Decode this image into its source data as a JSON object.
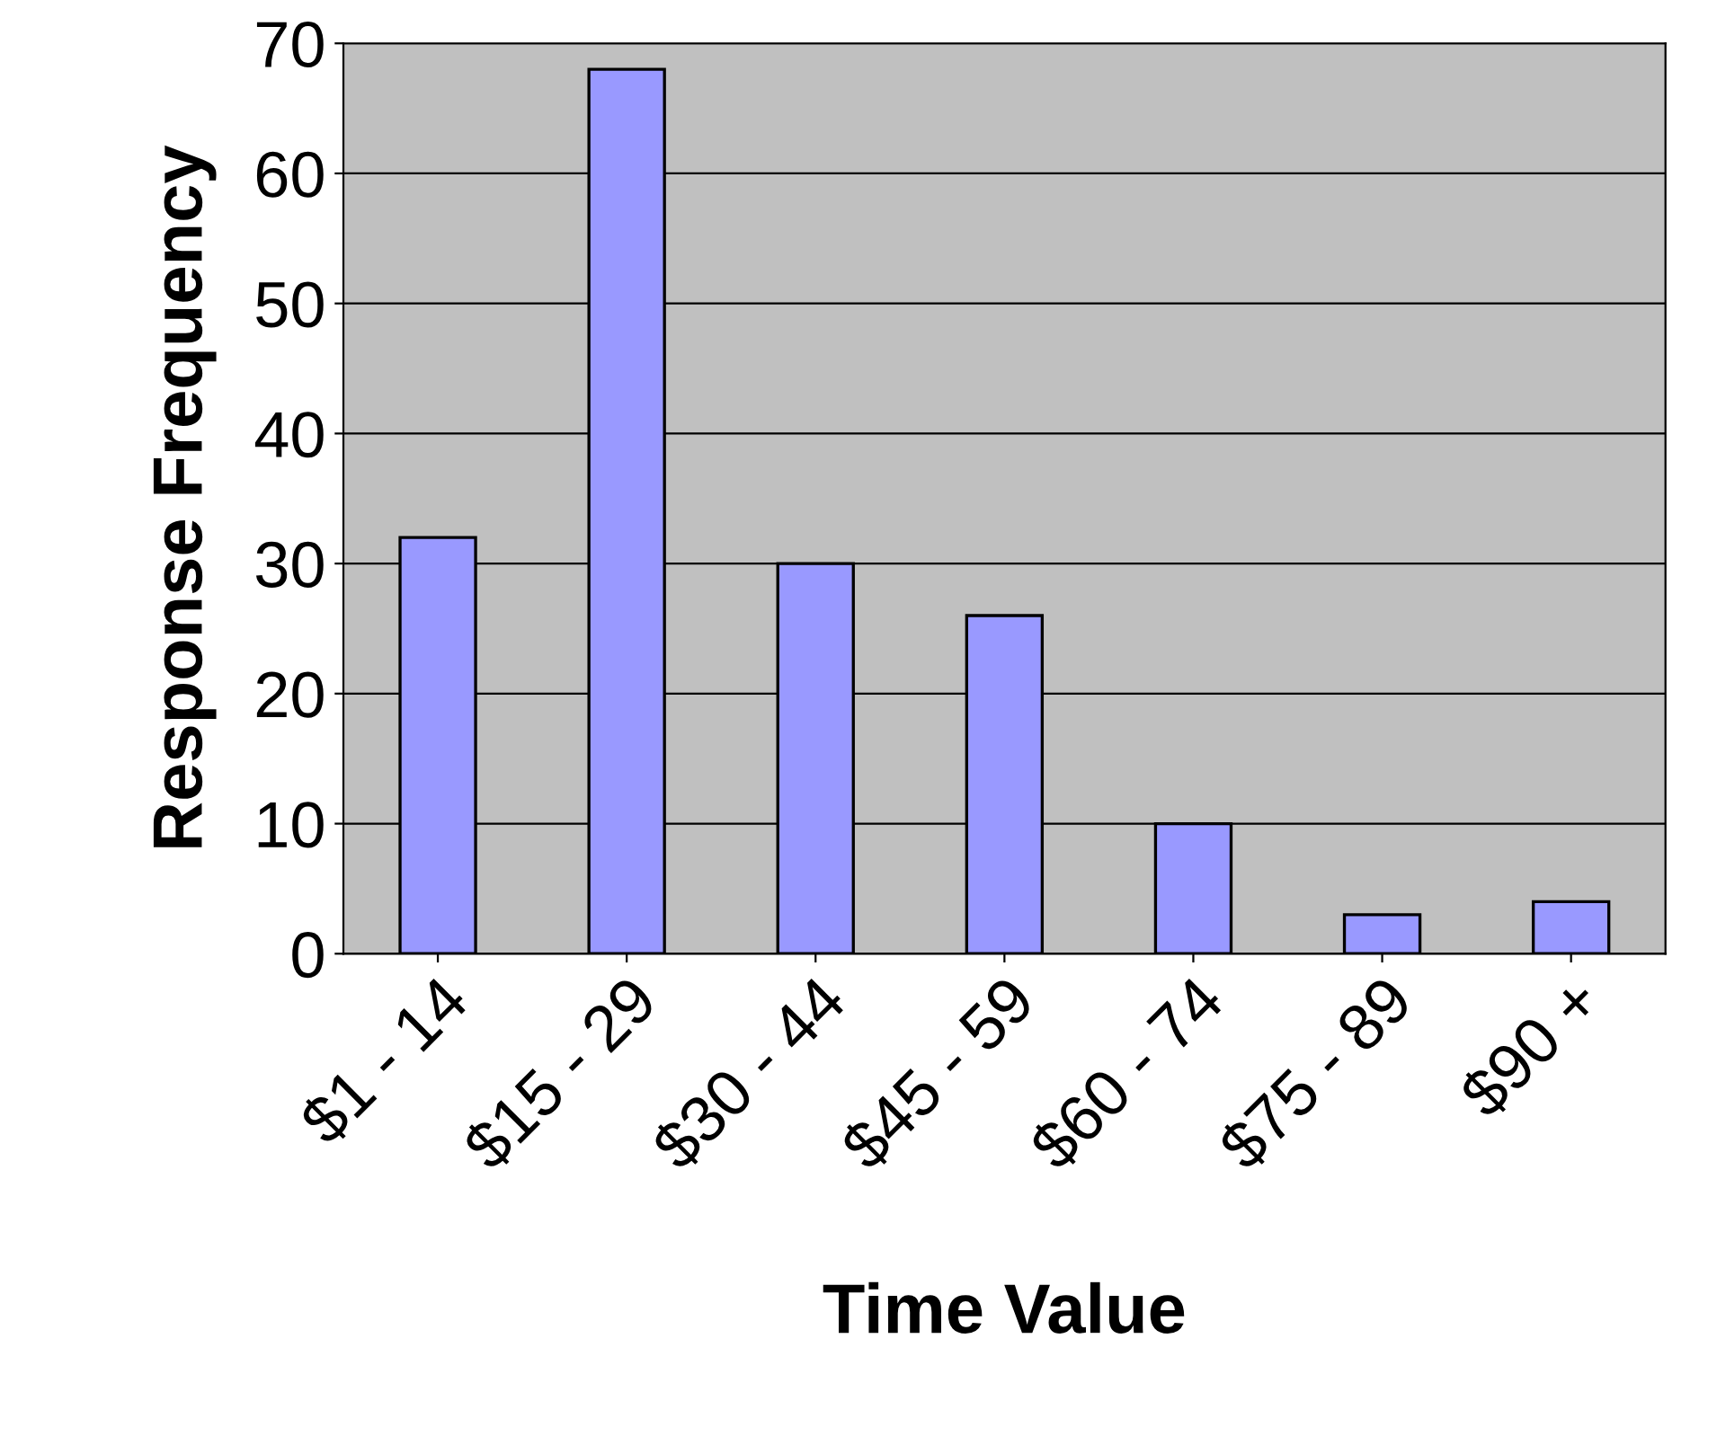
{
  "chart_data": {
    "type": "bar",
    "xlabel": "Time Value",
    "ylabel": "Response Frequency",
    "categories": [
      "$1 - 14",
      "$15 - 29",
      "$30 - 44",
      "$45 - 59",
      "$60 - 74",
      "$75 - 89",
      "$90 +"
    ],
    "values": [
      32,
      68,
      30,
      26,
      10,
      3,
      4
    ],
    "color": "#9999ff",
    "ylim": [
      0,
      70
    ],
    "yticks": [
      0,
      10,
      20,
      30,
      40,
      50,
      60,
      70
    ],
    "grid": "y"
  }
}
